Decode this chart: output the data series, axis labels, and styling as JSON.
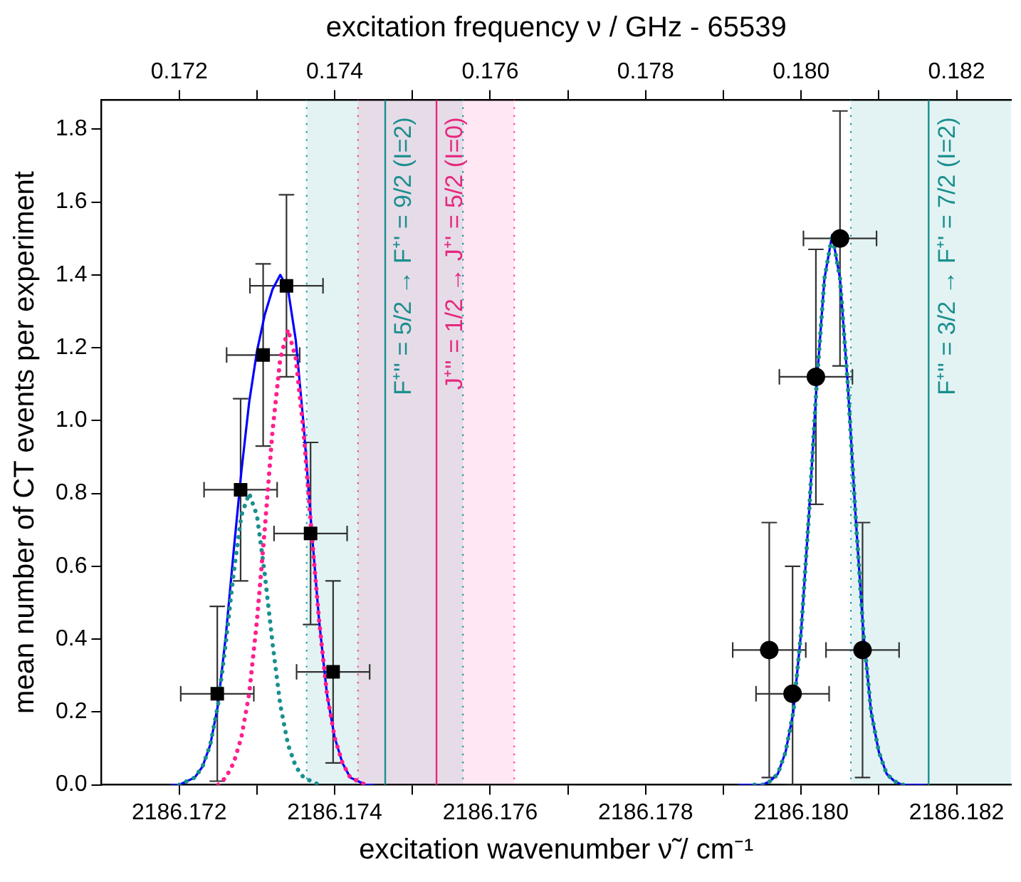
{
  "chart_data": {
    "type": "scatter",
    "xlabel": "excitation wavenumber ν̃ / cm⁻¹",
    "ylabel": "mean number of CT events per experiment",
    "x2label": "excitation frequency ν / GHz - 65539",
    "xlim": [
      2186.171,
      2186.1827
    ],
    "xticks": [
      2186.172,
      {
        "value": 2186.173,
        "label": null
      },
      {
        "value": 2186.174,
        "label": "2186.174"
      },
      {
        "value": 2186.175,
        "label": null
      },
      {
        "value": 2186.176,
        "label": "2186.176"
      },
      {
        "value": 2186.177,
        "label": null
      },
      {
        "value": 2186.178,
        "label": "2186.178"
      },
      {
        "value": 2186.179,
        "label": null
      },
      {
        "value": 2186.18,
        "label": "2186.180"
      },
      {
        "value": 2186.181,
        "label": null
      },
      {
        "value": 2186.182,
        "label": "2186.182"
      }
    ],
    "x2lim": [
      0.171,
      0.1827
    ],
    "x2ticks": [
      0.172,
      {
        "value": 0.173,
        "label": null
      },
      0.174,
      {
        "value": 0.175,
        "label": null
      },
      0.176,
      {
        "value": 0.177,
        "label": null
      },
      0.178,
      {
        "value": 0.179,
        "label": null
      },
      {
        "value": 0.18,
        "label": "0.180"
      },
      {
        "value": 0.181,
        "label": null
      },
      0.182
    ],
    "ylim": [
      0,
      1.88
    ],
    "yticks": [
      {
        "value": 0,
        "label": "0.0"
      },
      0.2,
      0.4,
      0.6,
      0.8,
      {
        "value": 1,
        "label": "1.0"
      },
      1.2,
      1.4,
      1.6,
      1.8
    ],
    "grid": false,
    "legend": false,
    "bands": [
      {
        "axis": "x",
        "from": 2186.17364,
        "to": 2186.17565,
        "color": "#169c9c"
      },
      {
        "axis": "x",
        "from": 2186.1743,
        "to": 2186.17631,
        "color": "#ff3d9a"
      },
      {
        "axis": "x",
        "from": 2186.18064,
        "to": 2186.1827,
        "color": "#169c9c"
      }
    ],
    "ref_lines": [
      {
        "axis": "x",
        "value": 2186.17465,
        "color": "#1a8f8f"
      },
      {
        "axis": "x",
        "value": 2186.17531,
        "color": "#e6287f"
      },
      {
        "axis": "x",
        "value": 2186.18164,
        "color": "#1a8f8f"
      },
      {
        "axis": "x",
        "value": 2186.17364,
        "color": "#169c9c",
        "line_style": "dotted"
      },
      {
        "axis": "x",
        "value": 2186.17565,
        "color": "#169c9c",
        "line_style": "dotted"
      },
      {
        "axis": "x",
        "value": 2186.18064,
        "color": "#169c9c",
        "line_style": "dotted"
      },
      {
        "axis": "x",
        "value": 2186.1743,
        "color": "#ff3d9a",
        "line_style": "dotted"
      },
      {
        "axis": "x",
        "value": 2186.17631,
        "color": "#ff3d9a",
        "line_style": "dotted"
      }
    ],
    "annotations": [
      {
        "text": "F⁺'' = 5/2 → F⁺' = 9/2 (I=2)",
        "x": 2186.17465
      },
      {
        "text": "J⁺'' = 1/2 → J⁺' = 5/2 (I=0)",
        "x": 2186.17531
      },
      {
        "text": "F⁺'' = 3/2 → F⁺' = 7/2 (I=2)",
        "x": 2186.18164
      }
    ],
    "series": [
      {
        "marker": "square",
        "color": "#000000",
        "x": [
          2186.17249,
          2186.17279,
          2186.17308,
          2186.17338,
          2186.17369,
          2186.17398
        ],
        "values": [
          0.25,
          0.81,
          1.18,
          1.37,
          0.69,
          0.31
        ],
        "errors": [
          0.24,
          0.25,
          0.25,
          0.25,
          0.25,
          0.25
        ],
        "xerrors": [
          0.00047,
          0.00047,
          0.00047,
          0.00047,
          0.00047,
          0.00047
        ]
      },
      {
        "marker": "circle",
        "color": "#000000",
        "x": [
          2186.17959,
          2186.17989,
          2186.18019,
          2186.1805,
          2186.18079
        ],
        "values": [
          0.37,
          0.25,
          1.12,
          1.5,
          0.37
        ],
        "errors": [
          0.35,
          [
            0,
            0.6
          ],
          0.35,
          0.35,
          0.35
        ],
        "xerrors": [
          0.00047,
          0.00047,
          0.00047,
          0.00047,
          0.00047
        ]
      },
      {
        "type": "line",
        "marker": "none",
        "line_style": "dotted",
        "color": "#ff1f8f",
        "x": [
          2186.1725,
          2186.1726,
          2186.1727,
          2186.1728,
          2186.1729,
          2186.173,
          2186.1731,
          2186.1732,
          2186.1733,
          2186.1734,
          2186.1735,
          2186.1736,
          2186.1737,
          2186.1738,
          2186.1739,
          2186.174,
          2186.1741,
          2186.1742,
          2186.1743,
          2186.1744
        ],
        "values": [
          0,
          0.02,
          0.06,
          0.13,
          0.25,
          0.45,
          0.7,
          0.97,
          1.17,
          1.25,
          1.17,
          0.97,
          0.7,
          0.45,
          0.25,
          0.13,
          0.06,
          0.02,
          0.01,
          0
        ]
      },
      {
        "type": "line",
        "marker": "none",
        "line_style": "dotted",
        "color": "#1a8f8f",
        "x": [
          2186.172,
          2186.1721,
          2186.1722,
          2186.1723,
          2186.1724,
          2186.1725,
          2186.1726,
          2186.1727,
          2186.1728,
          2186.1729,
          2186.173,
          2186.1731,
          2186.1732,
          2186.1733,
          2186.1734,
          2186.1735,
          2186.1736,
          2186.1737,
          2186.1738,
          2186.176,
          2186.1794,
          2186.1795,
          2186.1796,
          2186.1797,
          2186.1798,
          2186.1799,
          2186.18,
          2186.1801,
          2186.1802,
          2186.1803,
          2186.1804,
          2186.1805,
          2186.1806,
          2186.1807,
          2186.1808,
          2186.1809,
          2186.181,
          2186.1811,
          2186.1812,
          2186.1813,
          2186.1814
        ],
        "values": [
          0,
          0.01,
          0.02,
          0.05,
          0.11,
          0.22,
          0.39,
          0.58,
          0.74,
          0.8,
          0.74,
          0.58,
          0.39,
          0.22,
          0.11,
          0.05,
          0.02,
          0.01,
          0,
          null,
          0,
          0,
          0.01,
          0.03,
          0.09,
          0.2,
          0.42,
          0.74,
          1.1,
          1.39,
          1.51,
          1.39,
          1.1,
          0.74,
          0.42,
          0.2,
          0.09,
          0.03,
          0.01,
          0,
          0
        ]
      },
      {
        "type": "line",
        "marker": "none",
        "line_style": "solid",
        "color": "#0000ff",
        "x": [
          2186.1719,
          2186.172,
          2186.1721,
          2186.1722,
          2186.1723,
          2186.1724,
          2186.1725,
          2186.1726,
          2186.1727,
          2186.1728,
          2186.1729,
          2186.173,
          2186.1731,
          2186.1732,
          2186.1733,
          2186.1734,
          2186.1735,
          2186.1736,
          2186.1737,
          2186.1738,
          2186.1739,
          2186.174,
          2186.1741,
          2186.1742,
          2186.1743,
          2186.1744,
          2186.1745,
          2186.176,
          2186.1792,
          2186.1793,
          2186.1794,
          2186.1795,
          2186.1796,
          2186.1797,
          2186.1798,
          2186.1799,
          2186.18,
          2186.1801,
          2186.1802,
          2186.1803,
          2186.1804,
          2186.1805,
          2186.1806,
          2186.1807,
          2186.1808,
          2186.1809,
          2186.181,
          2186.1811,
          2186.1812,
          2186.1813,
          2186.1814,
          2186.1815,
          2186.1816
        ],
        "values": [
          0,
          0,
          0.01,
          0.02,
          0.05,
          0.11,
          0.22,
          0.41,
          0.64,
          0.86,
          1.05,
          1.19,
          1.29,
          1.36,
          1.4,
          1.36,
          1.22,
          0.99,
          0.71,
          0.45,
          0.25,
          0.13,
          0.06,
          0.02,
          0.01,
          0,
          0,
          null,
          0,
          0,
          0,
          0,
          0.01,
          0.03,
          0.09,
          0.2,
          0.42,
          0.74,
          1.1,
          1.39,
          1.51,
          1.39,
          1.1,
          0.74,
          0.42,
          0.2,
          0.09,
          0.03,
          0.01,
          0,
          0,
          0,
          0
        ]
      }
    ]
  }
}
